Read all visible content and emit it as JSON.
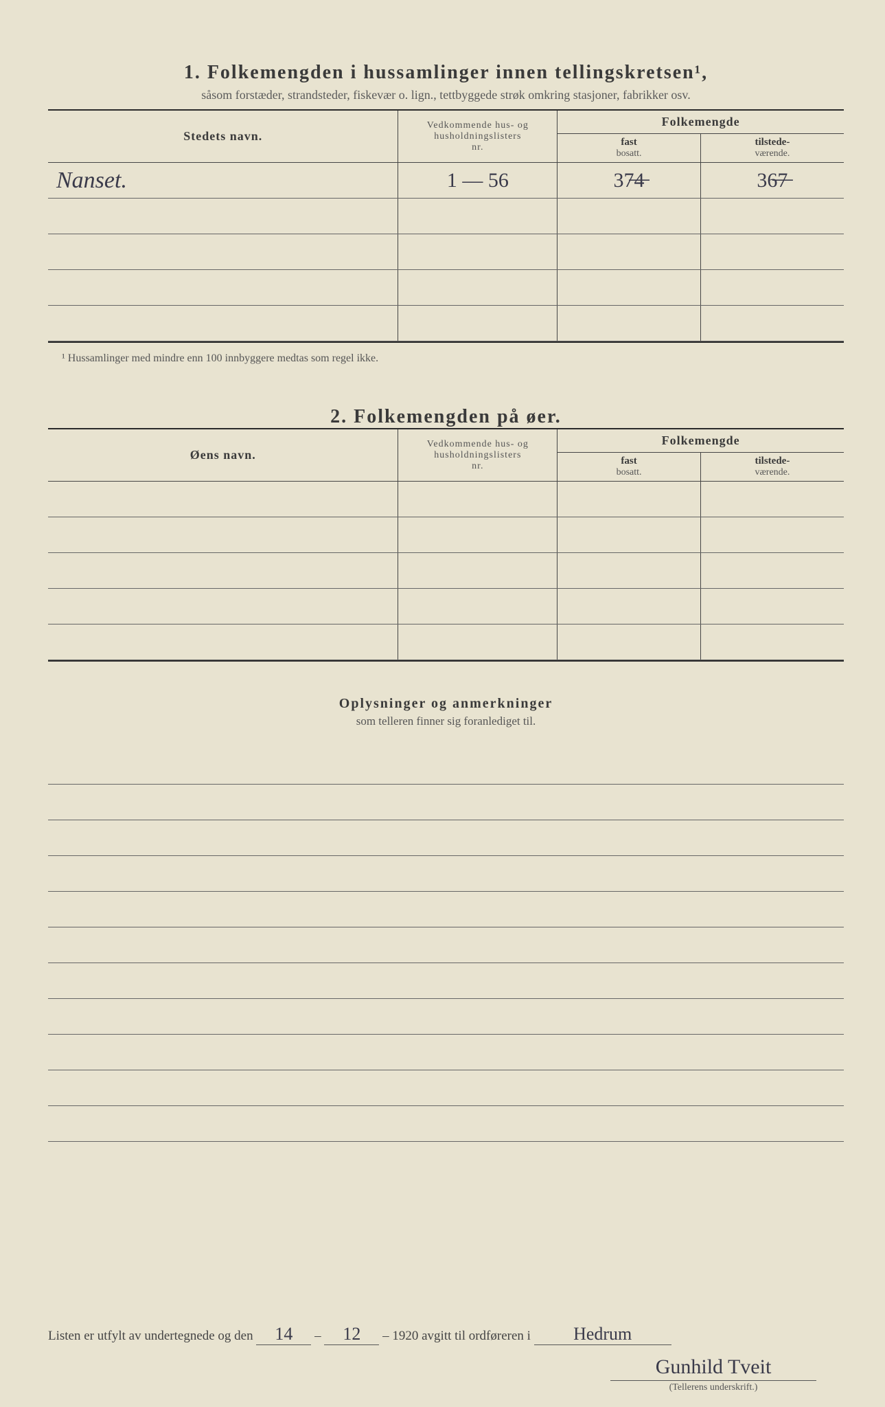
{
  "section1": {
    "number": "1.",
    "title": "Folkemengden i hussamlinger innen tellingskretsen¹,",
    "subtitle": "såsom forstæder, strandsteder, fiskevær o. lign., tettbyggede strøk omkring stasjoner, fabrikker osv.",
    "col_name": "Stedets navn.",
    "col_nr_line1": "Vedkommende hus- og",
    "col_nr_line2": "husholdningslisters",
    "col_nr_line3": "nr.",
    "col_folk": "Folkemengde",
    "col_fast_l1": "fast",
    "col_fast_l2": "bosatt.",
    "col_til_l1": "tilstede-",
    "col_til_l2": "værende.",
    "rows": [
      {
        "name": "Nanset.",
        "nr": "1 — 56",
        "fast": "37̶4̶",
        "til": "36̶7̶"
      },
      {
        "name": "",
        "nr": "",
        "fast": "",
        "til": ""
      },
      {
        "name": "",
        "nr": "",
        "fast": "",
        "til": ""
      },
      {
        "name": "",
        "nr": "",
        "fast": "",
        "til": ""
      },
      {
        "name": "",
        "nr": "",
        "fast": "",
        "til": ""
      }
    ],
    "footnote": "¹ Hussamlinger med mindre enn 100 innbyggere medtas som regel ikke."
  },
  "section2": {
    "number": "2.",
    "title": "Folkemengden på øer.",
    "col_name": "Øens navn.",
    "rows": [
      {
        "name": "",
        "nr": "",
        "fast": "",
        "til": ""
      },
      {
        "name": "",
        "nr": "",
        "fast": "",
        "til": ""
      },
      {
        "name": "",
        "nr": "",
        "fast": "",
        "til": ""
      },
      {
        "name": "",
        "nr": "",
        "fast": "",
        "til": ""
      },
      {
        "name": "",
        "nr": "",
        "fast": "",
        "til": ""
      }
    ]
  },
  "notes": {
    "title": "Oplysninger og anmerkninger",
    "subtitle": "som telleren finner sig foranlediget til.",
    "line_count": 11
  },
  "footer": {
    "text_before": "Listen er utfylt av undertegnede og den",
    "date_day": "14",
    "date_sep": "–",
    "date_month": "12",
    "date_sep2": "–",
    "year": "1920",
    "text_mid": "avgitt til ordføreren i",
    "place": "Hedrum",
    "signature": "Gunhild Tveit",
    "sig_label": "(Tellerens underskrift.)"
  }
}
